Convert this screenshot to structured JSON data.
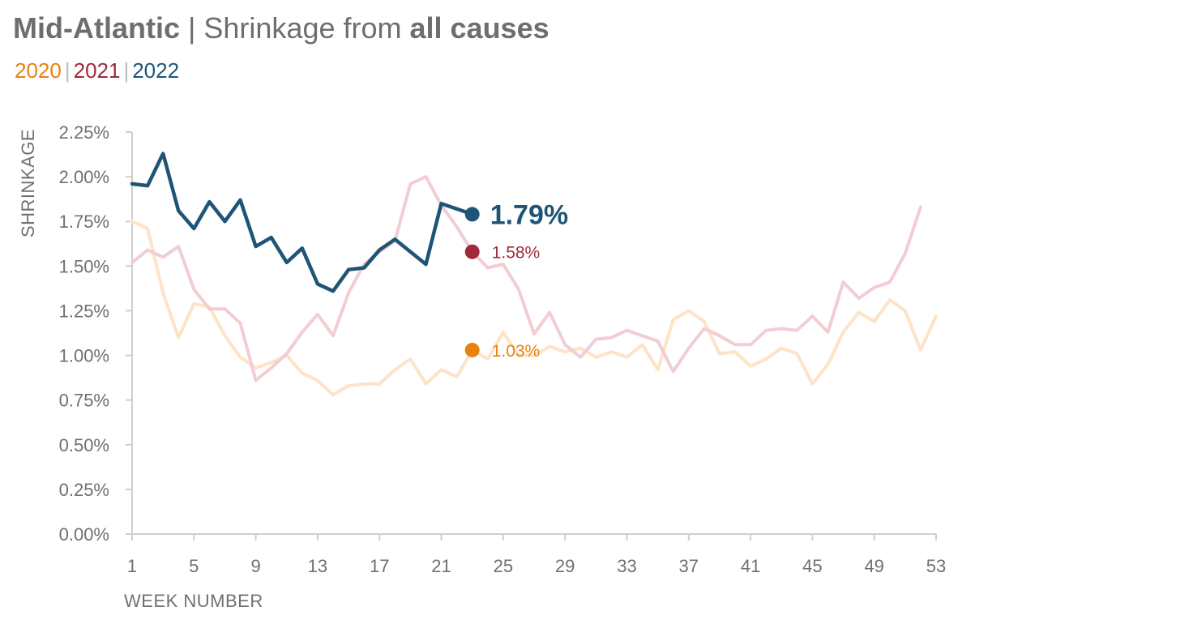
{
  "header": {
    "region": "Mid-Atlantic",
    "separator": "|",
    "title_prefix": "Shrinkage from",
    "title_cause": "all causes"
  },
  "legend": {
    "separator": "|",
    "items": [
      {
        "label": "2020",
        "color": "#e8820f"
      },
      {
        "label": "2021",
        "color": "#9e2a3a"
      },
      {
        "label": "2022",
        "color": "#1e5577"
      }
    ]
  },
  "chart_data": {
    "type": "line",
    "xlabel": "WEEK NUMBER",
    "ylabel": "SHRINKAGE",
    "xlim": [
      1,
      53
    ],
    "ylim": [
      0,
      2.25
    ],
    "x_ticks": [
      1,
      5,
      9,
      13,
      17,
      21,
      25,
      29,
      33,
      37,
      41,
      45,
      49,
      53
    ],
    "y_ticks": [
      "0.00%",
      "0.25%",
      "0.50%",
      "0.75%",
      "1.00%",
      "1.25%",
      "1.50%",
      "1.75%",
      "2.00%",
      "2.25%"
    ],
    "grid": false,
    "series": [
      {
        "name": "2020",
        "color": "#e8820f",
        "faded_color": "#fde3c7",
        "x": [
          1,
          2,
          3,
          4,
          5,
          6,
          7,
          8,
          9,
          10,
          11,
          12,
          13,
          14,
          15,
          16,
          17,
          18,
          19,
          20,
          21,
          22,
          23,
          24,
          25,
          26,
          27,
          28,
          29,
          30,
          31,
          32,
          33,
          34,
          35,
          36,
          37,
          38,
          39,
          40,
          41,
          42,
          43,
          44,
          45,
          46,
          47,
          48,
          49,
          50,
          51,
          52,
          53
        ],
        "values": [
          1.75,
          1.71,
          1.35,
          1.1,
          1.29,
          1.27,
          1.11,
          0.99,
          0.93,
          0.96,
          1.0,
          0.9,
          0.86,
          0.78,
          0.83,
          0.84,
          0.84,
          0.92,
          0.98,
          0.84,
          0.92,
          0.88,
          1.03,
          0.98,
          1.13,
          1.0,
          1.0,
          1.05,
          1.02,
          1.04,
          0.99,
          1.02,
          0.99,
          1.06,
          0.92,
          1.2,
          1.25,
          1.19,
          1.01,
          1.02,
          0.94,
          0.98,
          1.04,
          1.01,
          0.84,
          0.95,
          1.13,
          1.24,
          1.19,
          1.31,
          1.25,
          1.03,
          1.22
        ],
        "current_week": 23,
        "current_label": "1.03%"
      },
      {
        "name": "2021",
        "color": "#9e2a3a",
        "faded_color": "#f2cdd3",
        "x": [
          1,
          2,
          3,
          4,
          5,
          6,
          7,
          8,
          9,
          10,
          11,
          12,
          13,
          14,
          15,
          16,
          17,
          18,
          19,
          20,
          21,
          22,
          23,
          24,
          25,
          26,
          27,
          28,
          29,
          30,
          31,
          32,
          33,
          34,
          35,
          36,
          37,
          38,
          39,
          40,
          41,
          42,
          43,
          44,
          45,
          46,
          47,
          48,
          49,
          50,
          51,
          52
        ],
        "values": [
          1.52,
          1.59,
          1.55,
          1.61,
          1.37,
          1.26,
          1.26,
          1.18,
          0.86,
          0.93,
          1.01,
          1.13,
          1.23,
          1.11,
          1.35,
          1.51,
          1.58,
          1.64,
          1.96,
          2.0,
          1.84,
          1.72,
          1.58,
          1.49,
          1.51,
          1.37,
          1.12,
          1.24,
          1.06,
          0.99,
          1.09,
          1.1,
          1.14,
          1.11,
          1.08,
          0.91,
          1.04,
          1.15,
          1.11,
          1.06,
          1.06,
          1.14,
          1.15,
          1.14,
          1.22,
          1.13,
          1.41,
          1.32,
          1.38,
          1.41,
          1.57,
          1.83
        ],
        "current_week": 23,
        "current_label": "1.58%"
      },
      {
        "name": "2022",
        "color": "#1e5577",
        "x": [
          1,
          2,
          3,
          4,
          5,
          6,
          7,
          8,
          9,
          10,
          11,
          12,
          13,
          14,
          15,
          16,
          17,
          18,
          19,
          20,
          21,
          22,
          23
        ],
        "values": [
          1.96,
          1.95,
          2.13,
          1.81,
          1.71,
          1.86,
          1.75,
          1.87,
          1.61,
          1.66,
          1.52,
          1.6,
          1.4,
          1.36,
          1.48,
          1.49,
          1.59,
          1.65,
          1.58,
          1.51,
          1.85,
          1.82,
          1.79
        ],
        "current_week": 23,
        "current_label": "1.79%"
      }
    ]
  }
}
